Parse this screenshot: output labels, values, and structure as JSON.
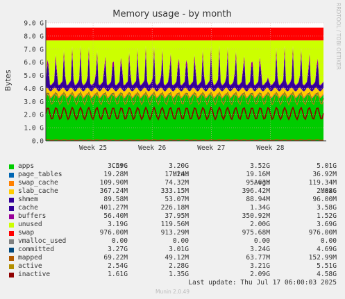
{
  "chart_data": {
    "type": "area",
    "title": "Memory usage - by month",
    "ylabel": "Bytes",
    "right_label": "RRDTOOL / TOBI OETIKER",
    "ylim": [
      0,
      9.0
    ],
    "yunit": "G",
    "yticks": [
      "0.0",
      "1.0 G",
      "2.0 G",
      "3.0 G",
      "4.0 G",
      "5.0 G",
      "6.0 G",
      "7.0 G",
      "8.0 G",
      "9.0 G"
    ],
    "x_range_weeks": [
      24.2,
      28.9
    ],
    "xticks": [
      {
        "label": "Week 25",
        "at": 25
      },
      {
        "label": "Week 26",
        "at": 26
      },
      {
        "label": "Week 27",
        "at": 27
      },
      {
        "label": "Week 28",
        "at": 28
      }
    ],
    "grid": true,
    "stacked_series_typical_gb": [
      {
        "name": "apps",
        "value": 3.4,
        "color": "#00cc00"
      },
      {
        "name": "page_tables",
        "value": 0.02,
        "color": "#0066b3"
      },
      {
        "name": "swap_cache",
        "value": 0.1,
        "color": "#ff8000"
      },
      {
        "name": "slab_cache",
        "value": 0.4,
        "color": "#ffcc00"
      },
      {
        "name": "shmem",
        "value": 0.09,
        "color": "#330099"
      },
      {
        "name": "cache",
        "value": 1.3,
        "color": "#330099"
      },
      {
        "name": "buffers",
        "value": 0.35,
        "color": "#990099"
      },
      {
        "name": "unused",
        "value": 2.0,
        "color": "#ccff00"
      },
      {
        "name": "swap",
        "value": 0.98,
        "color": "#ff0000"
      }
    ],
    "line_series_typical_gb": [
      {
        "name": "committed",
        "value": 3.24,
        "color": "#00487d"
      },
      {
        "name": "mapped",
        "value": 0.064,
        "color": "#b35a00"
      },
      {
        "name": "active",
        "value": 3.21,
        "color": "#b38f00"
      },
      {
        "name": "inactive",
        "value": 2.09,
        "color": "#8f0000"
      }
    ]
  },
  "legend": {
    "headers": [
      "Cur:",
      "Min:",
      "Avg:",
      "Max:"
    ],
    "rows": [
      {
        "name": "apps",
        "color": "#00cc00",
        "cur": "3.59G",
        "min": "3.20G",
        "avg": "3.52G",
        "max": "5.01G"
      },
      {
        "name": "page_tables",
        "color": "#0066b3",
        "cur": "19.28M",
        "min": "17.24M",
        "avg": "19.16M",
        "max": "36.92M"
      },
      {
        "name": "swap_cache",
        "color": "#ff8000",
        "cur": "109.90M",
        "min": "74.32M",
        "avg": "95.63M",
        "max": "119.34M"
      },
      {
        "name": "slab_cache",
        "color": "#ffcc00",
        "cur": "367.24M",
        "min": "333.15M",
        "avg": "396.42M",
        "max": "2.08G"
      },
      {
        "name": "shmem",
        "color": "#330099",
        "cur": "89.58M",
        "min": "53.07M",
        "avg": "88.94M",
        "max": "96.00M"
      },
      {
        "name": "cache",
        "color": "#330099",
        "cur": "401.27M",
        "min": "226.18M",
        "avg": "1.34G",
        "max": "3.58G"
      },
      {
        "name": "buffers",
        "color": "#990099",
        "cur": "56.40M",
        "min": "37.95M",
        "avg": "350.92M",
        "max": "1.52G"
      },
      {
        "name": "unused",
        "color": "#ccff00",
        "cur": "3.19G",
        "min": "119.56M",
        "avg": "2.00G",
        "max": "3.69G"
      },
      {
        "name": "swap",
        "color": "#ff0000",
        "cur": "976.00M",
        "min": "913.29M",
        "avg": "975.68M",
        "max": "976.00M"
      },
      {
        "name": "vmalloc_used",
        "color": "#808080",
        "cur": "0.00",
        "min": "0.00",
        "avg": "0.00",
        "max": "0.00"
      },
      {
        "name": "committed",
        "color": "#00487d",
        "cur": "3.27G",
        "min": "3.01G",
        "avg": "3.24G",
        "max": "4.69G"
      },
      {
        "name": "mapped",
        "color": "#b35a00",
        "cur": "69.22M",
        "min": "49.12M",
        "avg": "63.77M",
        "max": "152.99M"
      },
      {
        "name": "active",
        "color": "#b38f00",
        "cur": "2.54G",
        "min": "2.28G",
        "avg": "3.21G",
        "max": "5.51G"
      },
      {
        "name": "inactive",
        "color": "#8f0000",
        "cur": "1.61G",
        "min": "1.35G",
        "avg": "2.09G",
        "max": "4.58G"
      }
    ]
  },
  "last_update": "Last update: Thu Jul 17 06:00:03 2025",
  "footer": "Munin 2.0.49"
}
